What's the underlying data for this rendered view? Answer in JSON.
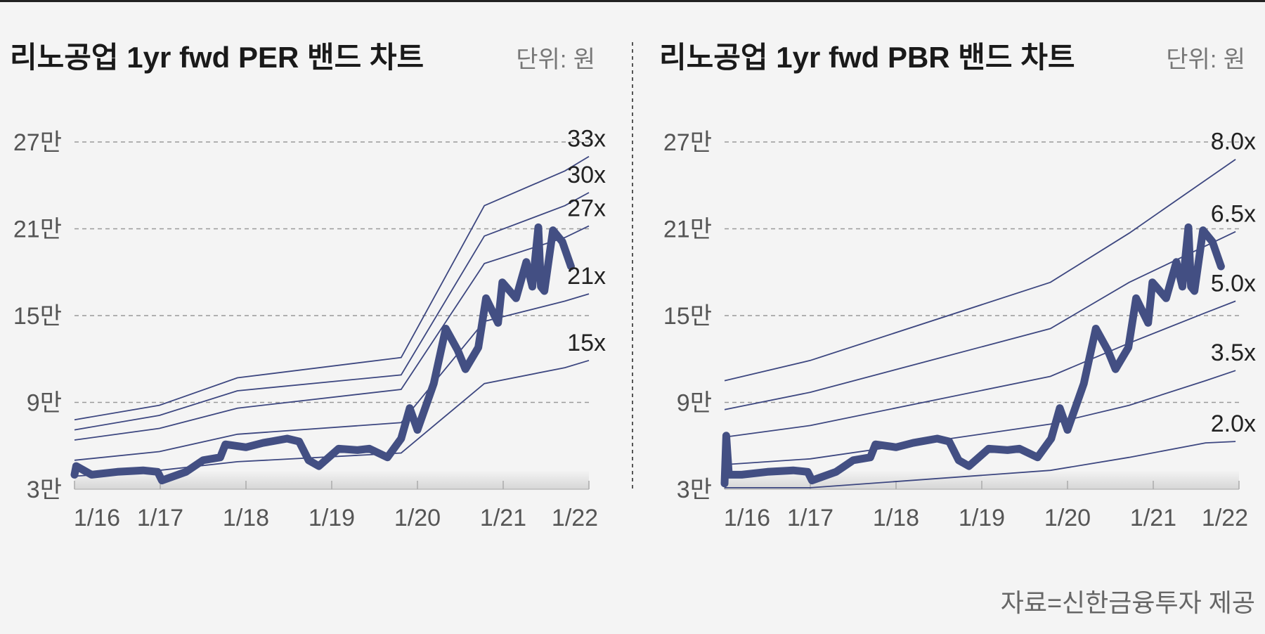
{
  "source": "자료=신한금융투자 제공",
  "colors": {
    "price": "#434f83",
    "band": "#3d4780",
    "grid": "#9a9a9a",
    "background": "#f4f4f4"
  },
  "chart_data": [
    {
      "type": "line",
      "title": "리노공업 1yr fwd PER 밴드 차트",
      "unit": "단위: 원",
      "y_ticks": [
        {
          "value": 3,
          "label": "3만"
        },
        {
          "value": 9,
          "label": "9만"
        },
        {
          "value": 15,
          "label": "15만"
        },
        {
          "value": 21,
          "label": "21만"
        },
        {
          "value": 27,
          "label": "27만"
        }
      ],
      "x_ticks": [
        {
          "value": 2016,
          "label": "1/16"
        },
        {
          "value": 2017,
          "label": "1/17"
        },
        {
          "value": 2018,
          "label": "1/18"
        },
        {
          "value": 2019,
          "label": "1/19"
        },
        {
          "value": 2020,
          "label": "1/20"
        },
        {
          "value": 2021,
          "label": "1/21"
        },
        {
          "value": 2022,
          "label": "1/22"
        }
      ],
      "xlim": [
        2016,
        2022
      ],
      "ylim": [
        3,
        27
      ],
      "grid": true,
      "price": {
        "x": [
          2016.0,
          2016.02,
          2016.2,
          2016.5,
          2016.8,
          2016.97,
          2017.02,
          2017.3,
          2017.5,
          2017.7,
          2017.76,
          2018.0,
          2018.2,
          2018.48,
          2018.62,
          2018.73,
          2018.85,
          2019.08,
          2019.3,
          2019.44,
          2019.65,
          2019.81,
          2019.91,
          2020.0,
          2020.19,
          2020.33,
          2020.47,
          2020.56,
          2020.71,
          2020.8,
          2020.94,
          2020.99,
          2021.15,
          2021.27,
          2021.34,
          2021.41,
          2021.44,
          2021.48,
          2021.58,
          2021.69,
          2021.79
        ],
        "y": [
          4.0,
          4.6,
          4.0,
          4.2,
          4.3,
          4.2,
          3.6,
          4.2,
          5.0,
          5.2,
          6.1,
          5.9,
          6.2,
          6.5,
          6.3,
          5.0,
          4.6,
          5.8,
          5.7,
          5.8,
          5.2,
          6.5,
          8.6,
          7.1,
          10.3,
          14.1,
          12.6,
          11.3,
          12.8,
          16.2,
          14.5,
          17.3,
          16.2,
          18.7,
          17.0,
          21.1,
          17.0,
          16.7,
          20.9,
          20.1,
          18.4
        ]
      },
      "bands": [
        {
          "label": "33x",
          "x": [
            2016.0,
            2016.99,
            2017.9,
            2019.81,
            2020.78,
            2021.72,
            2022.0
          ],
          "y": [
            7.8,
            8.8,
            10.7,
            12.1,
            22.6,
            25.0,
            26.0
          ]
        },
        {
          "label": "30x",
          "x": [
            2016.0,
            2016.99,
            2017.9,
            2019.81,
            2020.78,
            2021.72,
            2022.0
          ],
          "y": [
            7.1,
            8.1,
            9.8,
            10.9,
            20.5,
            22.6,
            23.5
          ]
        },
        {
          "label": "27x",
          "x": [
            2016.0,
            2016.99,
            2017.9,
            2019.81,
            2020.78,
            2021.72,
            2022.0
          ],
          "y": [
            6.4,
            7.2,
            8.6,
            9.9,
            18.6,
            20.4,
            21.2
          ]
        },
        {
          "label": "21x",
          "x": [
            2016.0,
            2016.99,
            2017.9,
            2019.81,
            2020.78,
            2021.72,
            2022.0
          ],
          "y": [
            5.0,
            5.6,
            6.8,
            7.6,
            14.6,
            16.0,
            16.5
          ]
        },
        {
          "label": "15x",
          "x": [
            2016.0,
            2016.99,
            2017.9,
            2019.81,
            2020.78,
            2021.72,
            2022.0
          ],
          "y": [
            3.9,
            4.3,
            4.9,
            5.5,
            10.3,
            11.4,
            11.9
          ]
        }
      ]
    },
    {
      "type": "line",
      "title": "리노공업 1yr fwd PBR 밴드 차트",
      "unit": "단위: 원",
      "y_ticks": [
        {
          "value": 3,
          "label": "3만"
        },
        {
          "value": 9,
          "label": "9만"
        },
        {
          "value": 15,
          "label": "15만"
        },
        {
          "value": 21,
          "label": "21만"
        },
        {
          "value": 27,
          "label": "27만"
        }
      ],
      "x_ticks": [
        {
          "value": 2016,
          "label": "1/16"
        },
        {
          "value": 2017,
          "label": "1/17"
        },
        {
          "value": 2018,
          "label": "1/18"
        },
        {
          "value": 2019,
          "label": "1/19"
        },
        {
          "value": 2020,
          "label": "1/20"
        },
        {
          "value": 2021,
          "label": "1/21"
        },
        {
          "value": 2022,
          "label": "1/22"
        }
      ],
      "xlim": [
        2016,
        2022
      ],
      "ylim": [
        3,
        27
      ],
      "grid": true,
      "price": {
        "x": [
          2016.0,
          2016.02,
          2016.05,
          2016.2,
          2016.5,
          2016.8,
          2016.97,
          2017.02,
          2017.3,
          2017.5,
          2017.7,
          2017.76,
          2018.0,
          2018.2,
          2018.48,
          2018.62,
          2018.73,
          2018.85,
          2019.08,
          2019.3,
          2019.44,
          2019.65,
          2019.81,
          2019.91,
          2020.0,
          2020.19,
          2020.33,
          2020.47,
          2020.56,
          2020.71,
          2020.8,
          2020.94,
          2020.99,
          2021.15,
          2021.27,
          2021.34,
          2021.41,
          2021.44,
          2021.48,
          2021.58,
          2021.69,
          2021.79
        ],
        "y": [
          3.4,
          6.7,
          4.0,
          4.0,
          4.2,
          4.3,
          4.2,
          3.6,
          4.2,
          5.0,
          5.2,
          6.1,
          5.9,
          6.2,
          6.5,
          6.3,
          5.0,
          4.6,
          5.8,
          5.7,
          5.8,
          5.2,
          6.5,
          8.6,
          7.1,
          10.3,
          14.1,
          12.6,
          11.3,
          12.8,
          16.2,
          14.5,
          17.3,
          16.2,
          18.7,
          17.0,
          21.1,
          17.0,
          16.7,
          20.9,
          20.1,
          18.4
        ]
      },
      "bands": [
        {
          "label": "8.0x",
          "x": [
            2016.0,
            2017.0,
            2019.8,
            2020.72,
            2021.96
          ],
          "y": [
            10.5,
            11.9,
            17.3,
            20.7,
            25.8
          ]
        },
        {
          "label": "6.5x",
          "x": [
            2016.0,
            2017.0,
            2019.8,
            2020.72,
            2021.96
          ],
          "y": [
            8.5,
            9.7,
            14.1,
            17.3,
            20.8
          ]
        },
        {
          "label": "5.0x",
          "x": [
            2016.0,
            2017.0,
            2019.8,
            2020.72,
            2021.61,
            2021.96
          ],
          "y": [
            6.6,
            7.4,
            10.8,
            13.1,
            15.2,
            16.0
          ]
        },
        {
          "label": "3.5x",
          "x": [
            2016.0,
            2017.0,
            2019.8,
            2020.72,
            2021.61,
            2021.96
          ],
          "y": [
            4.7,
            5.1,
            7.5,
            8.8,
            10.5,
            11.2
          ]
        },
        {
          "label": "2.0x",
          "x": [
            2016.0,
            2017.0,
            2019.8,
            2020.72,
            2021.61,
            2021.96
          ],
          "y": [
            3.1,
            3.1,
            4.3,
            5.2,
            6.2,
            6.3
          ]
        }
      ]
    }
  ]
}
